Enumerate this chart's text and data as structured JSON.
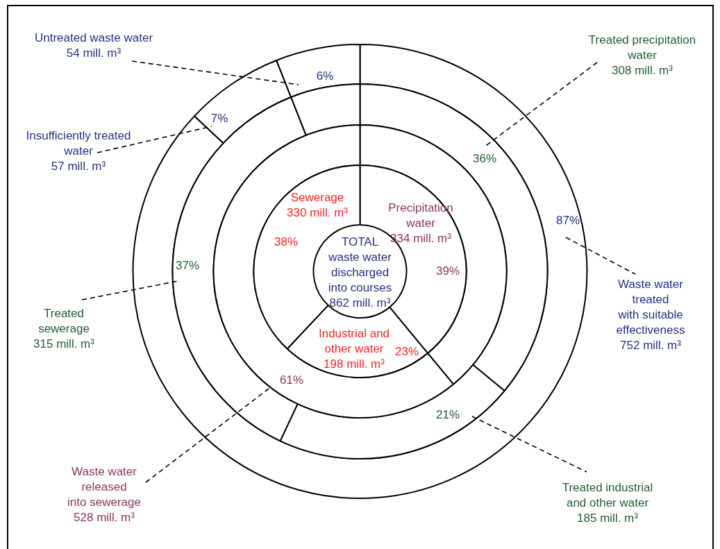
{
  "chart_data": [
    {
      "type": "donut",
      "legend": false,
      "title": "TOTAL\nwaste water\ndischarged\ninto courses\n862 mill. m³",
      "categories": [
        "Precipitation\nwater\n334 mill. m³",
        "Industrial and\nother water\n198 mill. m³",
        "Sewerage\n330 mill. m³"
      ],
      "values": [
        39,
        23,
        38
      ],
      "value_labels": [
        "39%",
        "23%",
        "38%"
      ],
      "colors": [
        "#ffffff",
        "#ffffff",
        "#ffffff"
      ]
    },
    {
      "type": "donut",
      "categories": [
        null,
        "Waste water\nreleased\ninto sewerage\n528 mill. m³"
      ],
      "values": [
        39,
        61
      ],
      "value_labels": [
        null,
        "61%"
      ],
      "colors": [
        "#ffffff",
        "#ffffff"
      ]
    },
    {
      "type": "donut",
      "categories": [
        "Treated precipitation\nwater\n308 mill. m³",
        "Treated industrial\nand other water\n185 mill. m³",
        "Treated\nsewerage\n315 mill. m³",
        null
      ],
      "values": [
        36,
        21,
        37,
        6
      ],
      "value_labels": [
        "36%",
        "21%",
        "37%",
        null
      ],
      "colors": [
        "#ffffff",
        "#ffffff",
        "#ffffff",
        "#ffffff"
      ]
    },
    {
      "type": "donut",
      "categories": [
        "Waste water\ntreated\nwith suitable\neffectiveness\n752 mill. m³",
        "Insufficiently treated\nwater\n57 mill. m³",
        "Untreated waste water\n54 mill. m³"
      ],
      "values": [
        87,
        7,
        6
      ],
      "value_labels": [
        "87%",
        "7%",
        "6%"
      ],
      "colors": [
        "#ffffff",
        "#ffffff",
        "#ffffff"
      ]
    }
  ]
}
